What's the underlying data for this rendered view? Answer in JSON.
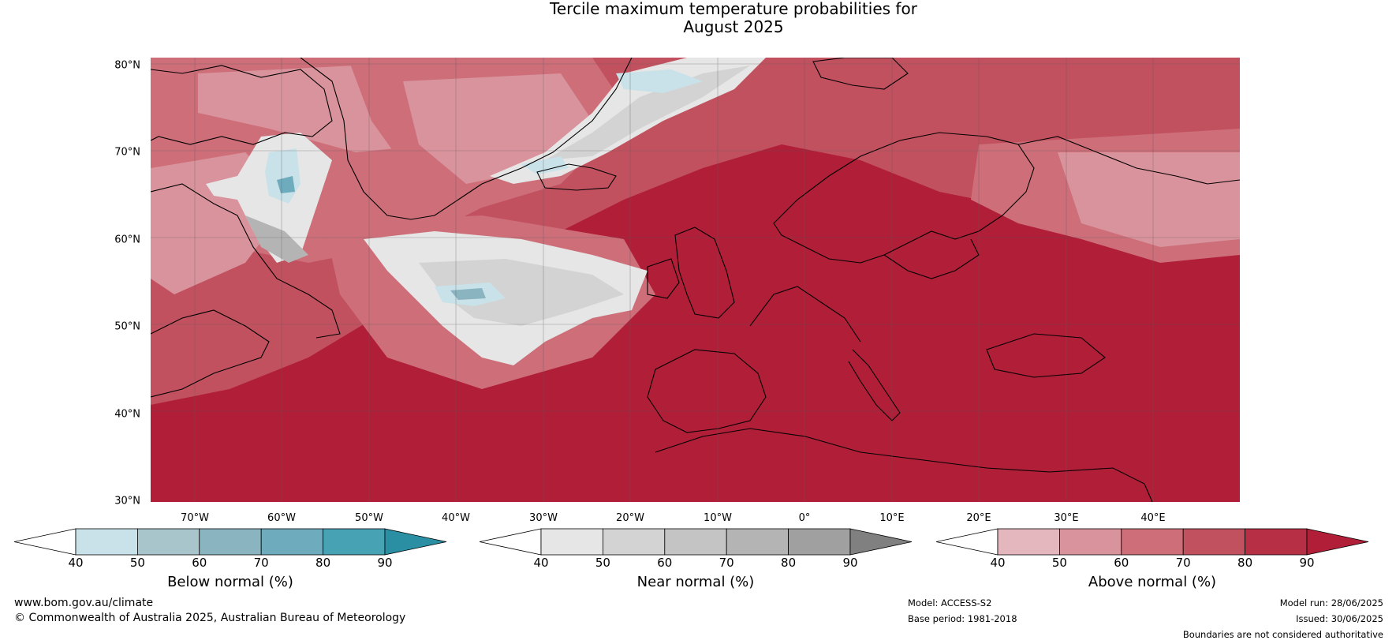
{
  "title": {
    "line1": "Tercile maximum temperature probabilities for",
    "line2": "August 2025"
  },
  "axes": {
    "lat_labels": [
      "80°N",
      "70°N",
      "60°N",
      "50°N",
      "40°N",
      "30°N"
    ],
    "lon_labels": [
      "70°W",
      "60°W",
      "50°W",
      "40°W",
      "30°W",
      "20°W",
      "10°W",
      "0°",
      "10°E",
      "20°E",
      "30°E",
      "40°E"
    ]
  },
  "colorbars": [
    {
      "label": "Below normal (%)",
      "ticks": [
        "40",
        "50",
        "60",
        "70",
        "80",
        "90"
      ],
      "colors": [
        "#c9e1e8",
        "#a8c5cc",
        "#89b4c0",
        "#6eacbd",
        "#47a2b4",
        "#2b8fa3"
      ]
    },
    {
      "label": "Near normal (%)",
      "ticks": [
        "40",
        "50",
        "60",
        "70",
        "80",
        "90"
      ],
      "colors": [
        "#e6e6e6",
        "#d3d3d3",
        "#c4c4c4",
        "#b4b4b4",
        "#a0a0a0",
        "#808080"
      ]
    },
    {
      "label": "Above normal (%)",
      "ticks": [
        "40",
        "50",
        "60",
        "70",
        "80",
        "90"
      ],
      "colors": [
        "#e4b6bd",
        "#d9939c",
        "#cd6e79",
        "#c2515f",
        "#b72f45",
        "#b01e38"
      ]
    }
  ],
  "footer": {
    "website": "www.bom.gov.au/climate",
    "copyright": "© Commonwealth of Australia 2025, Australian Bureau of Meteorology",
    "model": "Model: ACCESS-S2",
    "base_period": "Base period: 1981-2018",
    "model_run": "Model run: 28/06/2025",
    "issued": "Issued: 30/06/2025",
    "disclaimer": "Boundaries are not considered authoritative"
  },
  "colors": {
    "above_dark": "#b01e38",
    "above_mid": "#c2515f",
    "above_light": "#cd6e79",
    "above_lighter": "#d9939c",
    "near_light": "#e6e6e6",
    "near_mid": "#c4c4c4",
    "below_light": "#c9e1e8",
    "below_mid": "#6eacbd"
  }
}
